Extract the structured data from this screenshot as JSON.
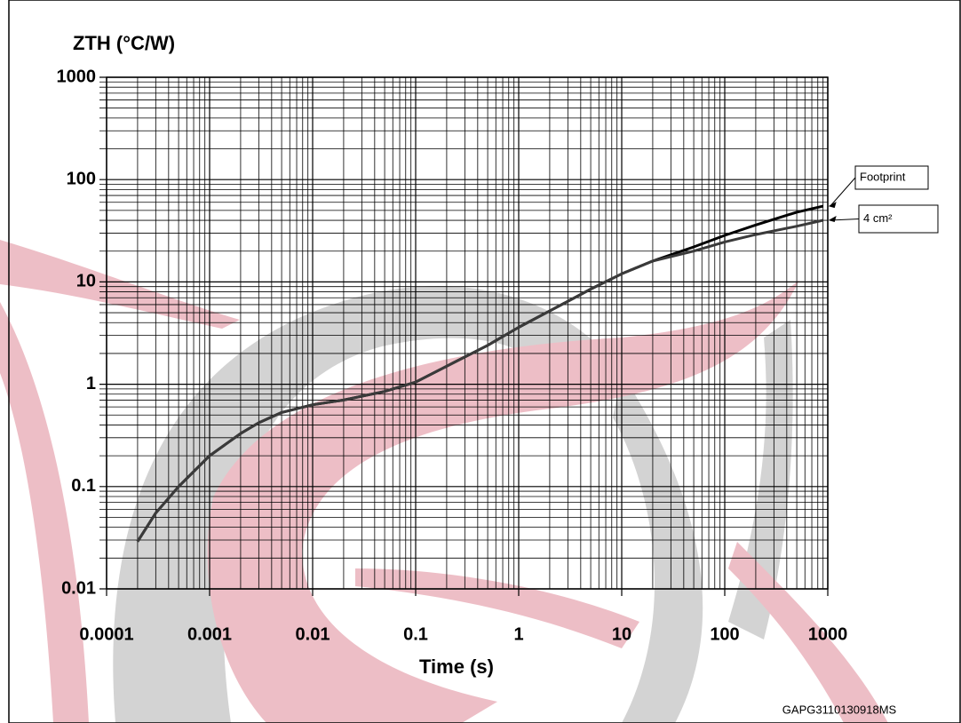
{
  "chart_data": {
    "type": "line",
    "y_label": "ZTH (°C/W)",
    "x_label": "Time (s)",
    "annotation": "GAPG3110130918MS",
    "log_x": true,
    "log_y": true,
    "grid": true,
    "minor_grid": true,
    "xlim": [
      0.0001,
      1000
    ],
    "ylim": [
      0.01,
      1000
    ],
    "xticks": [
      0.0001,
      0.001,
      0.01,
      0.1,
      1,
      10,
      100,
      1000
    ],
    "yticks": [
      0.01,
      0.1,
      1,
      10,
      100,
      1000
    ],
    "x": [
      0.0002,
      0.0003,
      0.0005,
      0.001,
      0.002,
      0.003,
      0.005,
      0.01,
      0.02,
      0.05,
      0.1,
      0.2,
      0.5,
      1,
      2,
      5,
      10,
      20,
      50,
      100,
      200,
      500,
      900
    ],
    "series": [
      {
        "name": "Footprint",
        "color": "#000000",
        "values": [
          0.029,
          0.055,
          0.1,
          0.2,
          0.33,
          0.42,
          0.53,
          0.63,
          0.7,
          0.85,
          1.05,
          1.5,
          2.4,
          3.6,
          5.2,
          8.5,
          12,
          16,
          22,
          28.5,
          36,
          48,
          55
        ]
      },
      {
        "name": "4 cm²",
        "color": "#3a3a3a",
        "values": [
          0.029,
          0.055,
          0.1,
          0.2,
          0.33,
          0.42,
          0.53,
          0.63,
          0.7,
          0.85,
          1.05,
          1.5,
          2.4,
          3.6,
          5.2,
          8.5,
          12,
          16,
          20,
          24.6,
          29,
          35,
          40
        ]
      }
    ]
  }
}
